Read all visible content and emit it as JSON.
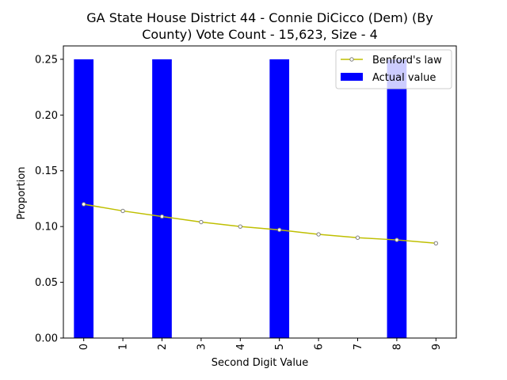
{
  "chart_data": {
    "type": "bar",
    "title_lines": [
      "GA State House District 44 - Connie DiCicco (Dem) (By",
      "County) Vote Count - 15,623, Size - 4"
    ],
    "xlabel": "Second Digit Value",
    "ylabel": "Proportion",
    "categories": [
      "0",
      "1",
      "2",
      "3",
      "4",
      "5",
      "6",
      "7",
      "8",
      "9"
    ],
    "ylim": [
      0,
      0.262
    ],
    "yticks": [
      0.0,
      0.05,
      0.1,
      0.15,
      0.2,
      0.25
    ],
    "ytick_labels": [
      "0.00",
      "0.05",
      "0.10",
      "0.15",
      "0.20",
      "0.25"
    ],
    "legend_position": "top-right",
    "series": [
      {
        "name": "Benford's law",
        "kind": "line",
        "color": "#bfbf00",
        "values": [
          0.12,
          0.114,
          0.109,
          0.104,
          0.1,
          0.097,
          0.093,
          0.09,
          0.088,
          0.085
        ]
      },
      {
        "name": "Actual value",
        "kind": "bar",
        "color": "#0000ff",
        "values": [
          0.25,
          0,
          0.25,
          0,
          0,
          0.25,
          0,
          0,
          0.25,
          0
        ]
      }
    ]
  }
}
